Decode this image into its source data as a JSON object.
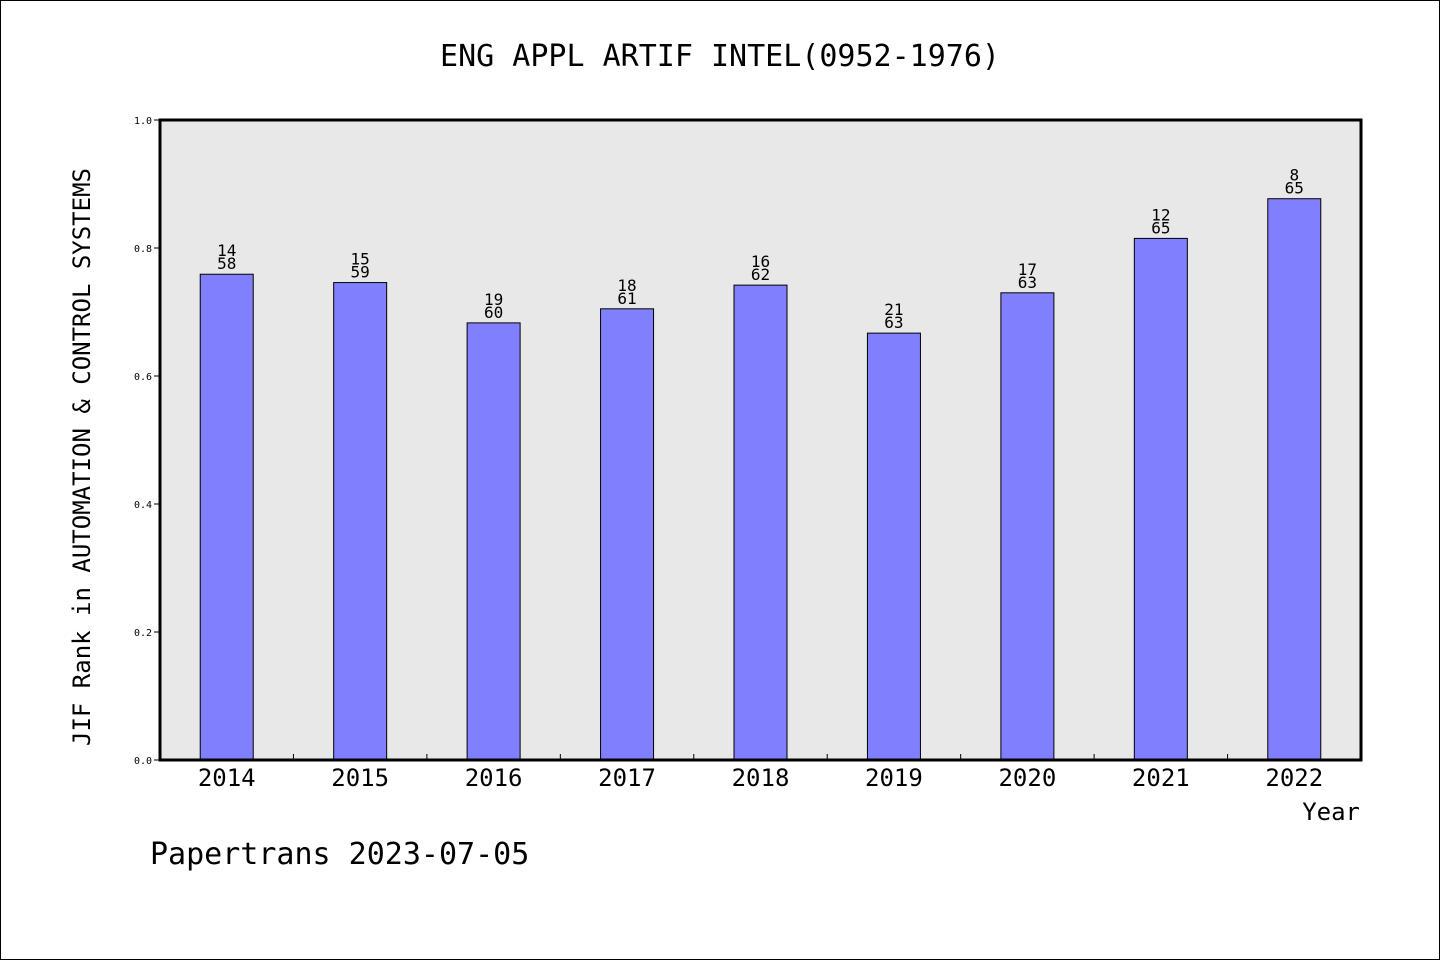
{
  "footer": {
    "text": "Papertrans 2023-07-05"
  },
  "chart_data": {
    "type": "bar",
    "title": "ENG APPL ARTIF INTEL(0952-1976)",
    "xlabel": "Year",
    "ylabel": "JIF Rank in AUTOMATION & CONTROL SYSTEMS",
    "categories": [
      "2014",
      "2015",
      "2016",
      "2017",
      "2018",
      "2019",
      "2020",
      "2021",
      "2022"
    ],
    "values": [
      0.759,
      0.746,
      0.683,
      0.705,
      0.742,
      0.667,
      0.73,
      0.815,
      0.877
    ],
    "rank_labels": [
      [
        "14",
        "58"
      ],
      [
        "15",
        "59"
      ],
      [
        "19",
        "60"
      ],
      [
        "18",
        "61"
      ],
      [
        "16",
        "62"
      ],
      [
        "21",
        "63"
      ],
      [
        "17",
        "63"
      ],
      [
        "12",
        "65"
      ],
      [
        "8",
        "65"
      ]
    ],
    "ylim": [
      0,
      1.0
    ],
    "yticks": [
      "0.0",
      "0.2",
      "0.4",
      "0.6",
      "0.8",
      "1.0"
    ],
    "grid": false,
    "bar_color": "#8080ff",
    "plot_background": "#e8e8e8"
  }
}
